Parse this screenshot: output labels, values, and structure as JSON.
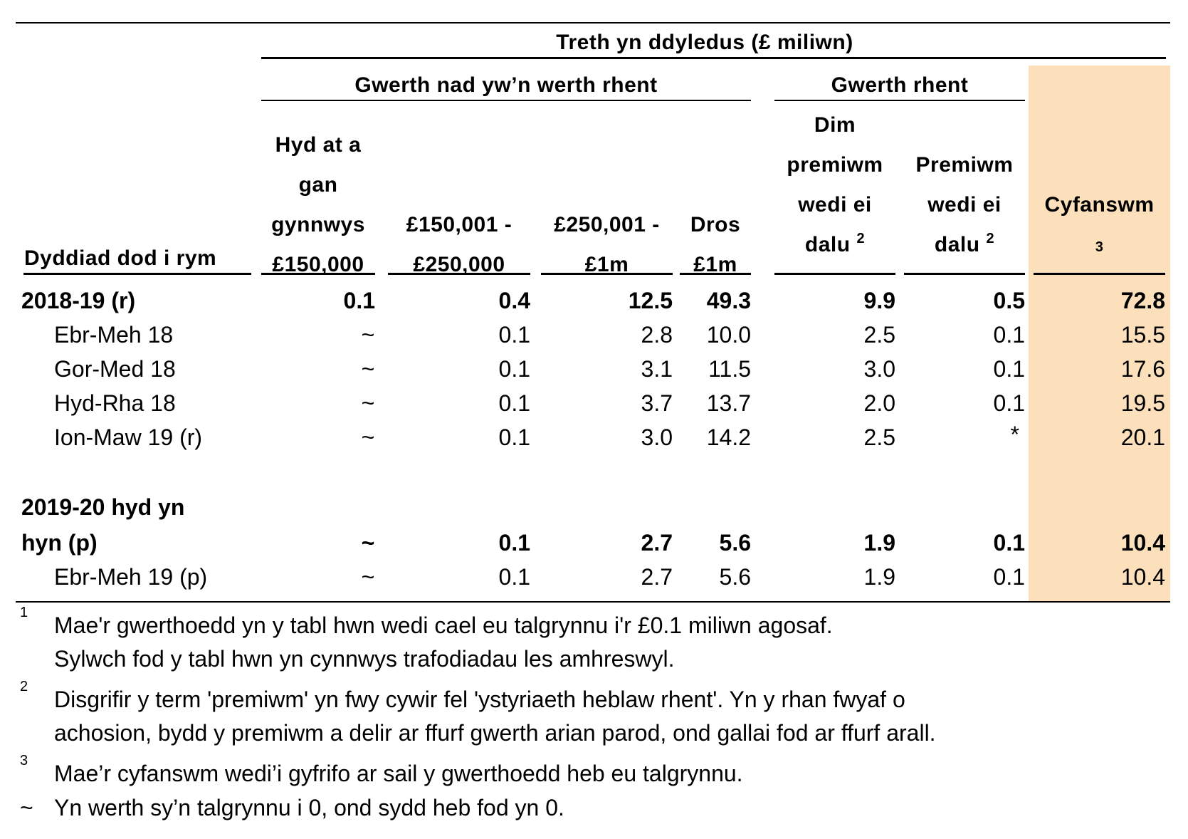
{
  "colors": {
    "total_column_bg": "#FCE0BC",
    "rule": "#000000"
  },
  "header": {
    "super_title": "Treth yn ddyledus (£ miliwn)",
    "group_non_rent": "Gwerth nad yw’n werth rhent",
    "group_rent": "Gwerth rhent",
    "col_date": "Dyddiad dod i rym",
    "col1": [
      "Hyd at a",
      "gan",
      "gynnwys",
      "£150,000"
    ],
    "col2": [
      "£150,001 -",
      "£250,000"
    ],
    "col3": [
      "£250,001 -",
      "£1m"
    ],
    "col4": [
      "Dros",
      "£1m"
    ],
    "col5": [
      "Dim",
      "premiwm",
      "wedi ei",
      "dalu"
    ],
    "col5_note": "2",
    "col6": [
      "Premiwm",
      "wedi ei",
      "dalu"
    ],
    "col6_note": "2",
    "col7": "Cyfanswm",
    "col7_note": "3"
  },
  "rows": [
    {
      "label": "2018-19 (r)",
      "bold": true,
      "values": [
        "0.1",
        "0.4",
        "12.5",
        "49.3",
        "9.9",
        "0.5",
        "72.8"
      ]
    },
    {
      "label": "Ebr-Meh 18",
      "bold": false,
      "values": [
        "~",
        "0.1",
        "2.8",
        "10.0",
        "2.5",
        "0.1",
        "15.5"
      ]
    },
    {
      "label": "Gor-Med 18",
      "bold": false,
      "values": [
        "~",
        "0.1",
        "3.1",
        "11.5",
        "3.0",
        "0.1",
        "17.6"
      ]
    },
    {
      "label": "Hyd-Rha 18",
      "bold": false,
      "values": [
        "~",
        "0.1",
        "3.7",
        "13.7",
        "2.0",
        "0.1",
        "19.5"
      ]
    },
    {
      "label": "Ion-Maw 19 (r)",
      "bold": false,
      "values": [
        "~",
        "0.1",
        "3.0",
        "14.2",
        "2.5",
        "*",
        "20.1"
      ]
    },
    {
      "label_lines": [
        "2019-20 hyd yn",
        "hyn (p)"
      ],
      "bold": true,
      "values": [
        "~",
        "0.1",
        "2.7",
        "5.6",
        "1.9",
        "0.1",
        "10.4"
      ]
    },
    {
      "label": "Ebr-Meh 19 (p)",
      "bold": false,
      "values": [
        "~",
        "0.1",
        "2.7",
        "5.6",
        "1.9",
        "0.1",
        "10.4"
      ]
    }
  ],
  "footnotes": [
    {
      "mark": "1",
      "lines": [
        "Mae'r gwerthoedd yn y tabl hwn wedi cael eu talgrynnu i'r £0.1 miliwn agosaf.",
        "Sylwch fod y tabl hwn yn cynnwys trafodiadau les amhreswyl."
      ]
    },
    {
      "mark": "2",
      "lines": [
        "Disgrifir y term 'premiwm' yn fwy cywir fel 'ystyriaeth heblaw rhent'. Yn y rhan fwyaf o",
        "achosion, bydd y premiwm a delir ar ffurf gwerth arian parod, ond gallai fod ar ffurf arall."
      ]
    },
    {
      "mark": "3",
      "lines": [
        "Mae’r cyfanswm wedi’i gyfrifo ar sail y gwerthoedd heb eu talgrynnu."
      ]
    },
    {
      "mark": "~",
      "lines": [
        "Yn werth sy’n talgrynnu i 0, ond sydd heb fod yn 0."
      ]
    }
  ]
}
